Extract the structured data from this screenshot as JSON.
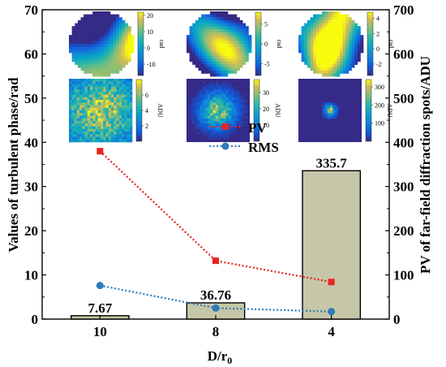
{
  "chart_data": {
    "type": "bar+line",
    "categories": [
      "10",
      "8",
      "4"
    ],
    "xlabel_main": "D/r",
    "xlabel_sub": "0",
    "ylabel_left": "Values of turbulent phase/rad",
    "ylabel_right": "PV of far-field diffraction spots/ADU",
    "ylim_left": [
      0,
      70
    ],
    "ylim_right": [
      0,
      700
    ],
    "yticks_left": [
      "0",
      "10",
      "20",
      "30",
      "40",
      "50",
      "60",
      "70"
    ],
    "yticks_right": [
      "0",
      "100",
      "200",
      "300",
      "400",
      "500",
      "600",
      "700"
    ],
    "bars": {
      "axis": "right",
      "values": [
        7.67,
        36.76,
        335.7
      ],
      "labels": [
        "7.67",
        "36.76",
        "335.7"
      ],
      "color": "#c6c6a9"
    },
    "series": [
      {
        "name": "PV",
        "axis": "left",
        "values": [
          38.0,
          13.2,
          8.4
        ],
        "color": "#e8231f",
        "marker": "square"
      },
      {
        "name": "RMS",
        "axis": "left",
        "values": [
          7.6,
          2.5,
          1.7
        ],
        "color": "#2e7ab8",
        "marker": "circle"
      }
    ],
    "legend": [
      "PV",
      "RMS"
    ],
    "insets": [
      {
        "kind": "phase",
        "colorbar_ticks": [
          "20",
          "10",
          "0",
          "-10"
        ],
        "unit": "rad",
        "min": -17,
        "max": 22,
        "seed": 11
      },
      {
        "kind": "phase",
        "colorbar_ticks": [
          "5",
          "0",
          "-5"
        ],
        "unit": "rad",
        "min": -8,
        "max": 8,
        "seed": 23
      },
      {
        "kind": "phase",
        "colorbar_ticks": [
          "4",
          "2",
          "0",
          "-2"
        ],
        "unit": "rad",
        "min": -3.5,
        "max": 4.8,
        "seed": 37
      },
      {
        "kind": "spot",
        "colorbar_ticks": [
          "6",
          "4",
          "2"
        ],
        "unit": "ADU",
        "min": 0,
        "max": 8,
        "spread": 0.9,
        "seed": 5
      },
      {
        "kind": "spot",
        "colorbar_ticks": [
          "30",
          "20",
          "10"
        ],
        "unit": "ADU",
        "min": 0,
        "max": 38,
        "spread": 0.35,
        "seed": 9
      },
      {
        "kind": "spot",
        "colorbar_ticks": [
          "300",
          "200",
          "100"
        ],
        "unit": "ADU",
        "min": 0,
        "max": 340,
        "spread": 0.12,
        "seed": 13
      }
    ]
  }
}
